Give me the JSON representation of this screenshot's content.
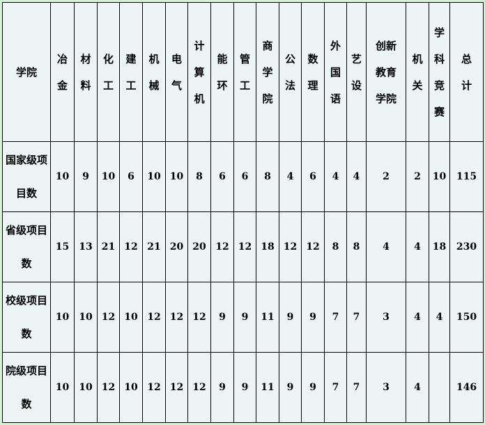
{
  "table": {
    "corner_label": "学院",
    "columns": [
      "冶\n金",
      "材\n料",
      "化\n工",
      "建\n工",
      "机\n械",
      "电\n气",
      "计\n算\n机",
      "能\n环",
      "管\n工",
      "商\n学\n院",
      "公\n法",
      "数\n理",
      "外\n国\n语",
      "艺\n设",
      "创新\n教育\n学院",
      "机\n关",
      "学\n科\n竞\n赛",
      "总\n计"
    ],
    "rows": [
      {
        "label": "国家级项\n目数",
        "values": [
          "10",
          "9",
          "10",
          "6",
          "10",
          "10",
          "8",
          "6",
          "6",
          "8",
          "4",
          "6",
          "4",
          "4",
          "2",
          "2",
          "10",
          "115"
        ]
      },
      {
        "label": "省级项目\n数",
        "values": [
          "15",
          "13",
          "21",
          "12",
          "21",
          "20",
          "20",
          "12",
          "12",
          "18",
          "12",
          "12",
          "8",
          "8",
          "4",
          "4",
          "18",
          "230"
        ]
      },
      {
        "label": "校级项目\n数",
        "values": [
          "10",
          "10",
          "12",
          "10",
          "12",
          "12",
          "12",
          "9",
          "9",
          "11",
          "9",
          "9",
          "7",
          "7",
          "3",
          "4",
          "4",
          "150"
        ]
      },
      {
        "label": "院级项目\n数",
        "values": [
          "10",
          "10",
          "12",
          "10",
          "12",
          "12",
          "12",
          "9",
          "9",
          "11",
          "9",
          "9",
          "7",
          "7",
          "3",
          "4",
          "",
          "146"
        ]
      }
    ]
  },
  "colors": {
    "page_background": "#d6f0d6",
    "table_background": "#edf4f5",
    "border": "#000000"
  }
}
